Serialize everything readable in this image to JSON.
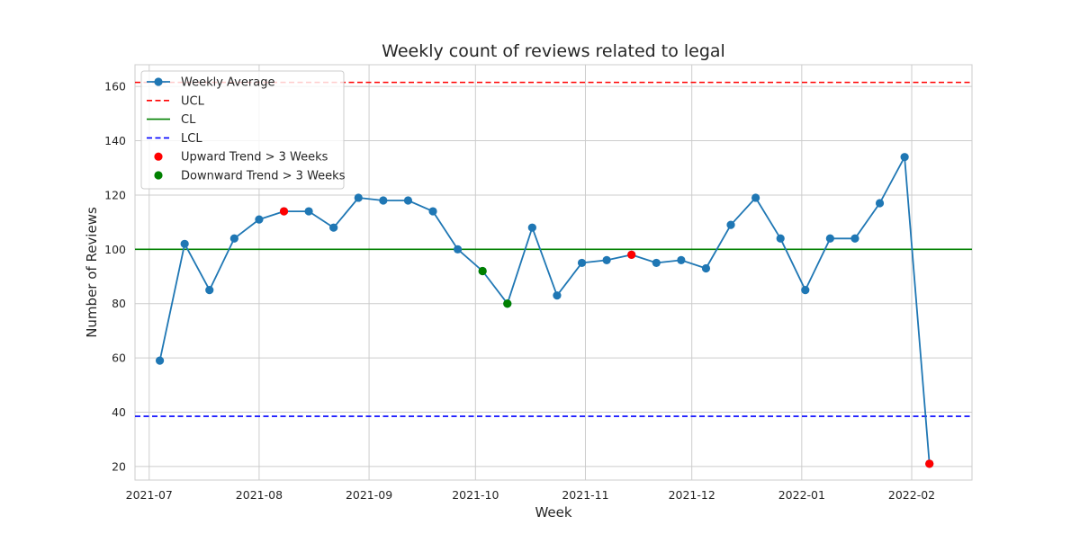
{
  "chart_data": {
    "type": "line",
    "title": "Weekly count of reviews related to legal",
    "xlabel": "Week",
    "ylabel": "Number of Reviews",
    "xlim": [
      "2021-06-27",
      "2022-02-18"
    ],
    "ylim": [
      15,
      168
    ],
    "yticks": [
      20,
      40,
      60,
      80,
      100,
      120,
      140,
      160
    ],
    "xticks": [
      {
        "date": "2021-07-01",
        "label": "2021-07"
      },
      {
        "date": "2021-08-01",
        "label": "2021-08"
      },
      {
        "date": "2021-09-01",
        "label": "2021-09"
      },
      {
        "date": "2021-10-01",
        "label": "2021-10"
      },
      {
        "date": "2021-11-01",
        "label": "2021-11"
      },
      {
        "date": "2021-12-01",
        "label": "2021-12"
      },
      {
        "date": "2022-01-01",
        "label": "2022-01"
      },
      {
        "date": "2022-02-01",
        "label": "2022-02"
      }
    ],
    "grid": true,
    "legend_position": "top-left",
    "series": [
      {
        "name": "Weekly Average",
        "color": "#1f77b4",
        "x": [
          "2021-07-04",
          "2021-07-11",
          "2021-07-18",
          "2021-07-25",
          "2021-08-01",
          "2021-08-08",
          "2021-08-15",
          "2021-08-22",
          "2021-08-29",
          "2021-09-05",
          "2021-09-12",
          "2021-09-19",
          "2021-09-26",
          "2021-10-03",
          "2021-10-10",
          "2021-10-17",
          "2021-10-24",
          "2021-10-31",
          "2021-11-07",
          "2021-11-14",
          "2021-11-21",
          "2021-11-28",
          "2021-12-05",
          "2021-12-12",
          "2021-12-19",
          "2021-12-26",
          "2022-01-02",
          "2022-01-09",
          "2022-01-16",
          "2022-01-23",
          "2022-01-30",
          "2022-02-06"
        ],
        "y": [
          59,
          102,
          85,
          104,
          111,
          114,
          114,
          108,
          119,
          118,
          118,
          114,
          100,
          92,
          80,
          108,
          83,
          95,
          96,
          98,
          95,
          96,
          93,
          109,
          119,
          104,
          85,
          104,
          104,
          117,
          134,
          21
        ]
      }
    ],
    "control_lines": [
      {
        "name": "UCL",
        "value": 161.5,
        "color": "#ff0000",
        "style": "dashed"
      },
      {
        "name": "CL",
        "value": 100,
        "color": "#008000",
        "style": "solid"
      },
      {
        "name": "LCL",
        "value": 38.5,
        "color": "#0000ff",
        "style": "dashed"
      }
    ],
    "highlight_series": [
      {
        "name": "Upward Trend > 3 Weeks",
        "color": "#ff0000",
        "x": [
          "2021-08-08",
          "2021-11-14",
          "2022-02-06"
        ],
        "y": [
          114,
          98,
          21
        ]
      },
      {
        "name": "Downward Trend > 3 Weeks",
        "color": "#008000",
        "x": [
          "2021-10-03",
          "2021-10-10"
        ],
        "y": [
          92,
          80
        ]
      }
    ]
  }
}
